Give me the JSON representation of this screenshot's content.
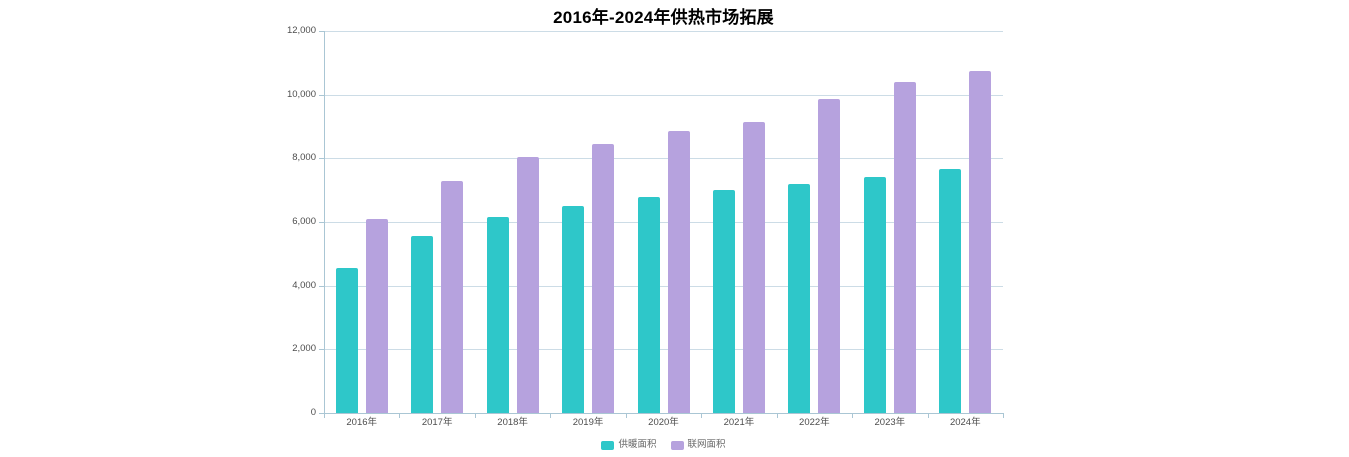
{
  "title": "2016年-2024年供热市场拓展",
  "colors": {
    "background": "#ffffff",
    "axis_line": "#aac6d4",
    "grid_line": "#ccdce6",
    "tick_label": "#4d4d4d",
    "legend_text": "#666666",
    "title_text": "#000000",
    "series1": "#2ec7c9",
    "series2": "#b6a2de"
  },
  "chart_data": {
    "type": "bar",
    "title": "2016年-2024年供热市场拓展",
    "xlabel": "",
    "ylabel": "",
    "categories": [
      "2016年",
      "2017年",
      "2018年",
      "2019年",
      "2020年",
      "2021年",
      "2022年",
      "2023年",
      "2024年"
    ],
    "series": [
      {
        "key": "heating-area",
        "name": "供暖面积",
        "color": "#2ec7c9",
        "values": [
          4550,
          5550,
          6150,
          6500,
          6800,
          7000,
          7200,
          7400,
          7650
        ]
      },
      {
        "key": "network-area",
        "name": "联网面积",
        "color": "#b6a2de",
        "values": [
          6100,
          7300,
          8050,
          8450,
          8850,
          9150,
          9850,
          10400,
          10750
        ]
      }
    ],
    "ylim": [
      0,
      12000
    ],
    "ytick_interval": 2000,
    "ytick_labels": [
      "0",
      "2,000",
      "4,000",
      "6,000",
      "8,000",
      "10,000",
      "12,000"
    ],
    "grid": true,
    "legend_position": "bottom-center"
  },
  "legend": {
    "items": [
      {
        "label": "供暖面积",
        "color": "#2ec7c9"
      },
      {
        "label": "联网面积",
        "color": "#b6a2de"
      }
    ]
  }
}
